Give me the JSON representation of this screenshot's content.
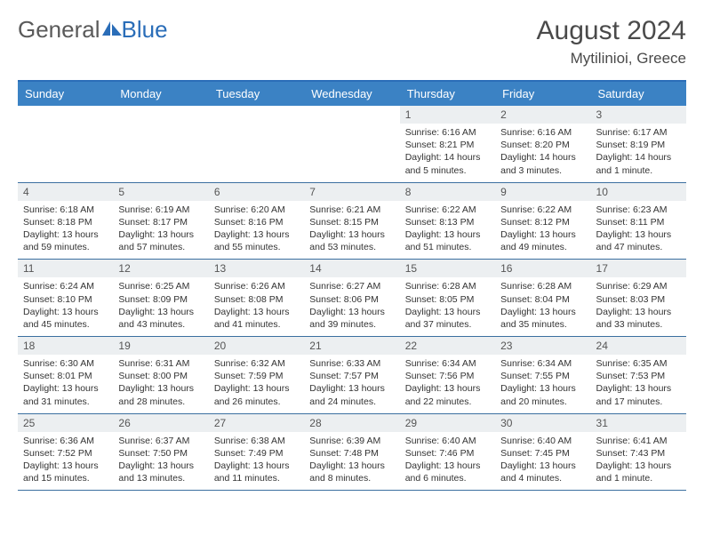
{
  "logo": {
    "text_gray": "General",
    "text_blue": "Blue"
  },
  "header": {
    "title": "August 2024",
    "location": "Mytilinioi, Greece"
  },
  "colors": {
    "brand_blue": "#3b82c4",
    "rule_blue": "#2a6db8",
    "daynum_bg": "#eceff1",
    "text_gray": "#5a5a5a",
    "body_text": "#333333"
  },
  "weekdays": [
    "Sunday",
    "Monday",
    "Tuesday",
    "Wednesday",
    "Thursday",
    "Friday",
    "Saturday"
  ],
  "weeks": [
    [
      {
        "empty": true
      },
      {
        "empty": true
      },
      {
        "empty": true
      },
      {
        "empty": true
      },
      {
        "num": "1",
        "sunrise": "Sunrise: 6:16 AM",
        "sunset": "Sunset: 8:21 PM",
        "daylight": "Daylight: 14 hours and 5 minutes."
      },
      {
        "num": "2",
        "sunrise": "Sunrise: 6:16 AM",
        "sunset": "Sunset: 8:20 PM",
        "daylight": "Daylight: 14 hours and 3 minutes."
      },
      {
        "num": "3",
        "sunrise": "Sunrise: 6:17 AM",
        "sunset": "Sunset: 8:19 PM",
        "daylight": "Daylight: 14 hours and 1 minute."
      }
    ],
    [
      {
        "num": "4",
        "sunrise": "Sunrise: 6:18 AM",
        "sunset": "Sunset: 8:18 PM",
        "daylight": "Daylight: 13 hours and 59 minutes."
      },
      {
        "num": "5",
        "sunrise": "Sunrise: 6:19 AM",
        "sunset": "Sunset: 8:17 PM",
        "daylight": "Daylight: 13 hours and 57 minutes."
      },
      {
        "num": "6",
        "sunrise": "Sunrise: 6:20 AM",
        "sunset": "Sunset: 8:16 PM",
        "daylight": "Daylight: 13 hours and 55 minutes."
      },
      {
        "num": "7",
        "sunrise": "Sunrise: 6:21 AM",
        "sunset": "Sunset: 8:15 PM",
        "daylight": "Daylight: 13 hours and 53 minutes."
      },
      {
        "num": "8",
        "sunrise": "Sunrise: 6:22 AM",
        "sunset": "Sunset: 8:13 PM",
        "daylight": "Daylight: 13 hours and 51 minutes."
      },
      {
        "num": "9",
        "sunrise": "Sunrise: 6:22 AM",
        "sunset": "Sunset: 8:12 PM",
        "daylight": "Daylight: 13 hours and 49 minutes."
      },
      {
        "num": "10",
        "sunrise": "Sunrise: 6:23 AM",
        "sunset": "Sunset: 8:11 PM",
        "daylight": "Daylight: 13 hours and 47 minutes."
      }
    ],
    [
      {
        "num": "11",
        "sunrise": "Sunrise: 6:24 AM",
        "sunset": "Sunset: 8:10 PM",
        "daylight": "Daylight: 13 hours and 45 minutes."
      },
      {
        "num": "12",
        "sunrise": "Sunrise: 6:25 AM",
        "sunset": "Sunset: 8:09 PM",
        "daylight": "Daylight: 13 hours and 43 minutes."
      },
      {
        "num": "13",
        "sunrise": "Sunrise: 6:26 AM",
        "sunset": "Sunset: 8:08 PM",
        "daylight": "Daylight: 13 hours and 41 minutes."
      },
      {
        "num": "14",
        "sunrise": "Sunrise: 6:27 AM",
        "sunset": "Sunset: 8:06 PM",
        "daylight": "Daylight: 13 hours and 39 minutes."
      },
      {
        "num": "15",
        "sunrise": "Sunrise: 6:28 AM",
        "sunset": "Sunset: 8:05 PM",
        "daylight": "Daylight: 13 hours and 37 minutes."
      },
      {
        "num": "16",
        "sunrise": "Sunrise: 6:28 AM",
        "sunset": "Sunset: 8:04 PM",
        "daylight": "Daylight: 13 hours and 35 minutes."
      },
      {
        "num": "17",
        "sunrise": "Sunrise: 6:29 AM",
        "sunset": "Sunset: 8:03 PM",
        "daylight": "Daylight: 13 hours and 33 minutes."
      }
    ],
    [
      {
        "num": "18",
        "sunrise": "Sunrise: 6:30 AM",
        "sunset": "Sunset: 8:01 PM",
        "daylight": "Daylight: 13 hours and 31 minutes."
      },
      {
        "num": "19",
        "sunrise": "Sunrise: 6:31 AM",
        "sunset": "Sunset: 8:00 PM",
        "daylight": "Daylight: 13 hours and 28 minutes."
      },
      {
        "num": "20",
        "sunrise": "Sunrise: 6:32 AM",
        "sunset": "Sunset: 7:59 PM",
        "daylight": "Daylight: 13 hours and 26 minutes."
      },
      {
        "num": "21",
        "sunrise": "Sunrise: 6:33 AM",
        "sunset": "Sunset: 7:57 PM",
        "daylight": "Daylight: 13 hours and 24 minutes."
      },
      {
        "num": "22",
        "sunrise": "Sunrise: 6:34 AM",
        "sunset": "Sunset: 7:56 PM",
        "daylight": "Daylight: 13 hours and 22 minutes."
      },
      {
        "num": "23",
        "sunrise": "Sunrise: 6:34 AM",
        "sunset": "Sunset: 7:55 PM",
        "daylight": "Daylight: 13 hours and 20 minutes."
      },
      {
        "num": "24",
        "sunrise": "Sunrise: 6:35 AM",
        "sunset": "Sunset: 7:53 PM",
        "daylight": "Daylight: 13 hours and 17 minutes."
      }
    ],
    [
      {
        "num": "25",
        "sunrise": "Sunrise: 6:36 AM",
        "sunset": "Sunset: 7:52 PM",
        "daylight": "Daylight: 13 hours and 15 minutes."
      },
      {
        "num": "26",
        "sunrise": "Sunrise: 6:37 AM",
        "sunset": "Sunset: 7:50 PM",
        "daylight": "Daylight: 13 hours and 13 minutes."
      },
      {
        "num": "27",
        "sunrise": "Sunrise: 6:38 AM",
        "sunset": "Sunset: 7:49 PM",
        "daylight": "Daylight: 13 hours and 11 minutes."
      },
      {
        "num": "28",
        "sunrise": "Sunrise: 6:39 AM",
        "sunset": "Sunset: 7:48 PM",
        "daylight": "Daylight: 13 hours and 8 minutes."
      },
      {
        "num": "29",
        "sunrise": "Sunrise: 6:40 AM",
        "sunset": "Sunset: 7:46 PM",
        "daylight": "Daylight: 13 hours and 6 minutes."
      },
      {
        "num": "30",
        "sunrise": "Sunrise: 6:40 AM",
        "sunset": "Sunset: 7:45 PM",
        "daylight": "Daylight: 13 hours and 4 minutes."
      },
      {
        "num": "31",
        "sunrise": "Sunrise: 6:41 AM",
        "sunset": "Sunset: 7:43 PM",
        "daylight": "Daylight: 13 hours and 1 minute."
      }
    ]
  ]
}
